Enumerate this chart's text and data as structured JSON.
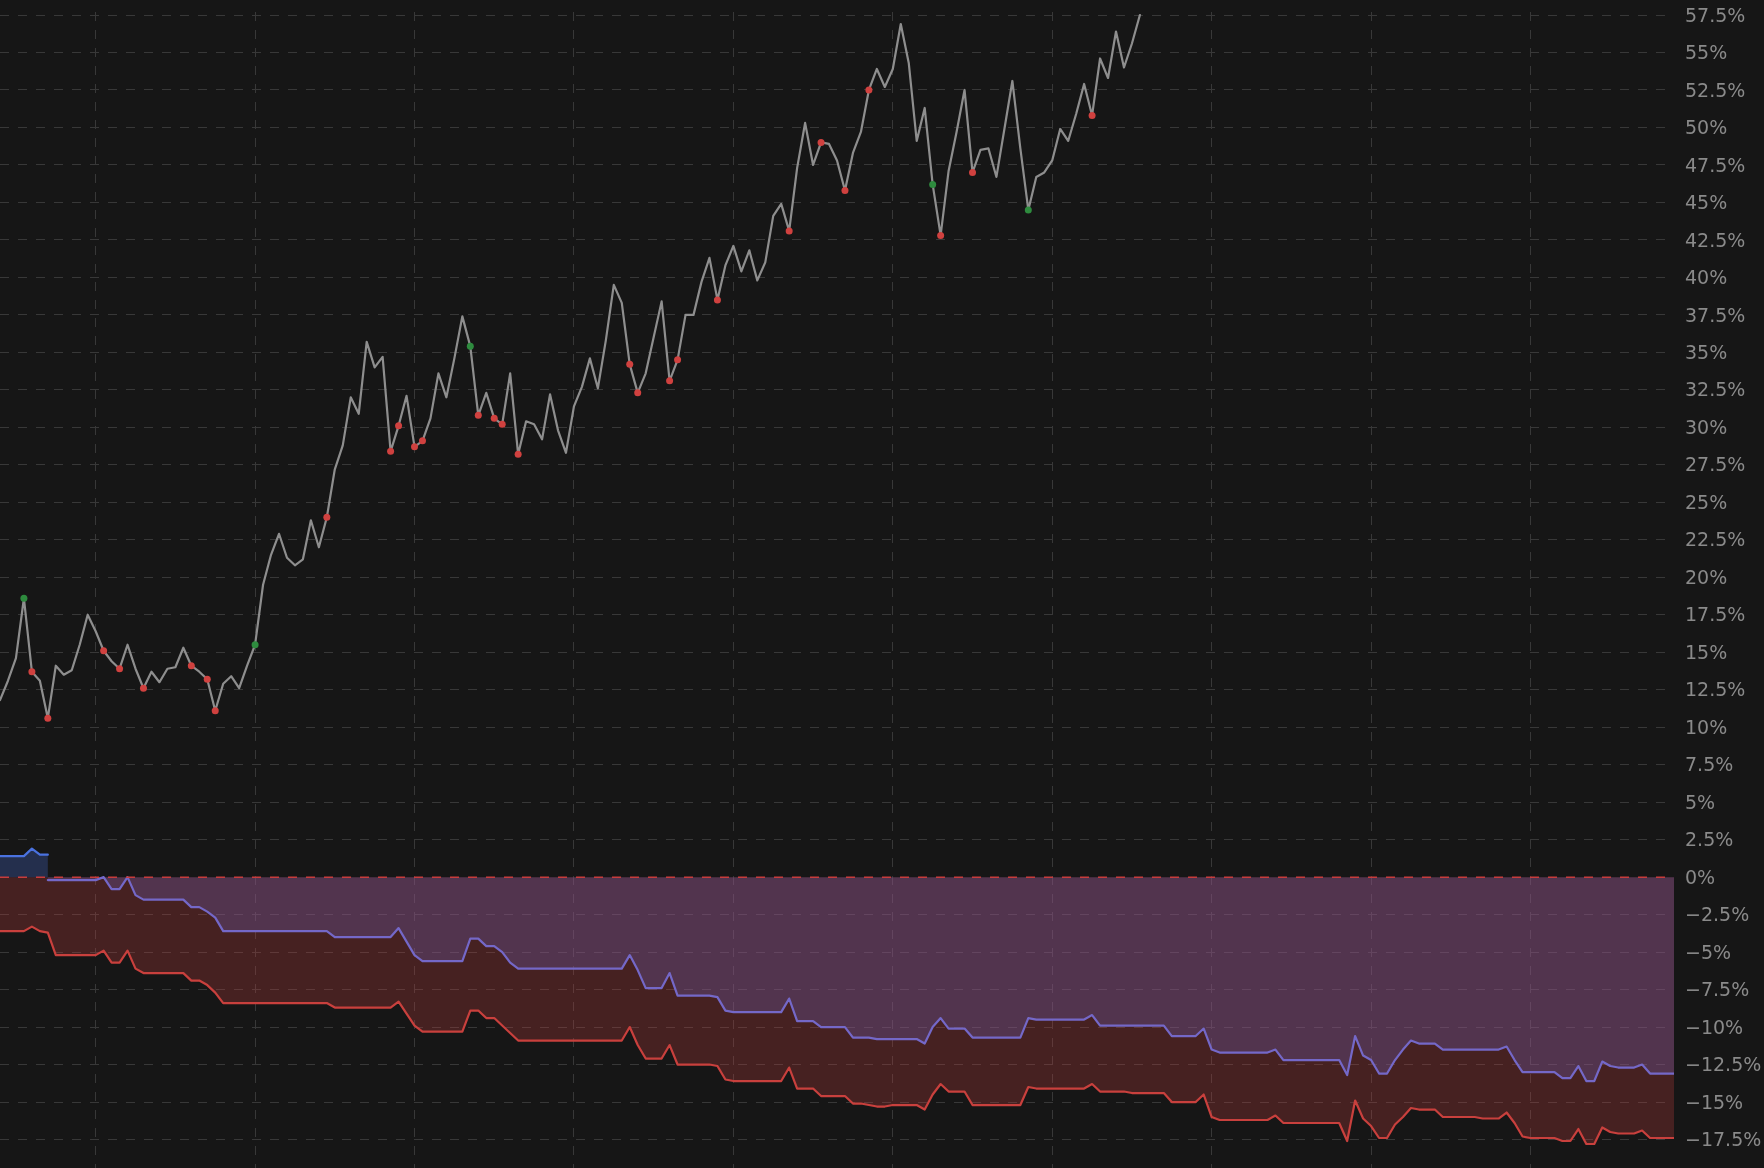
{
  "chart_data": {
    "type": "line",
    "categories": [
      null,
      null,
      null,
      null,
      null,
      null,
      null,
      null,
      null,
      null,
      null,
      null,
      null,
      null,
      null,
      null,
      null,
      null,
      null,
      null,
      null,
      null,
      null,
      null,
      null,
      null,
      null,
      null,
      null,
      null,
      null,
      null,
      null,
      null,
      null,
      null,
      null,
      null,
      null,
      null,
      null,
      null,
      null,
      null,
      null,
      null,
      null,
      null,
      null,
      null,
      null,
      null,
      null,
      null,
      null,
      null,
      null,
      null,
      null,
      null,
      null,
      null,
      null,
      null,
      null,
      null,
      null,
      null,
      null,
      null,
      null,
      null,
      null,
      null,
      null,
      null,
      null,
      null,
      null,
      null,
      null,
      null,
      null,
      null,
      null,
      null,
      null,
      null,
      null,
      null,
      null,
      null,
      null,
      null,
      null,
      null,
      null,
      null,
      null,
      null,
      null,
      null,
      null,
      null,
      null,
      null,
      null,
      null,
      null,
      null,
      null,
      null,
      null,
      null,
      null,
      null,
      null,
      null,
      null,
      null,
      null,
      null,
      null,
      null,
      null,
      null,
      null,
      null,
      null,
      null,
      null,
      null,
      null,
      null,
      null,
      null,
      null,
      null,
      null,
      null,
      null,
      null,
      null,
      null,
      null,
      null,
      null,
      null,
      null,
      null,
      null,
      null,
      null,
      null,
      null,
      null,
      null,
      null,
      null,
      null,
      null,
      null,
      null,
      null,
      null,
      null,
      null,
      null,
      null,
      null,
      null,
      null,
      null,
      null,
      null,
      null,
      null,
      null,
      null,
      null,
      null,
      null,
      null,
      null,
      null,
      null,
      null,
      null,
      null,
      null,
      null,
      null,
      null,
      null,
      null,
      null,
      null,
      null,
      null,
      null,
      null,
      null,
      null,
      null,
      null,
      null,
      null,
      null,
      null,
      null,
      null
    ],
    "ylim": [
      -19.4,
      57.7
    ],
    "yticks": [
      {
        "value": -17.5,
        "label": "−17.5%"
      },
      {
        "value": -15,
        "label": "−15%"
      },
      {
        "value": -12.5,
        "label": "−12.5%"
      },
      {
        "value": -10,
        "label": "−10%"
      },
      {
        "value": -7.5,
        "label": "−7.5%"
      },
      {
        "value": -5,
        "label": "−5%"
      },
      {
        "value": -2.5,
        "label": "−2.5%"
      },
      {
        "value": 0,
        "label": "0%"
      },
      {
        "value": 2.5,
        "label": "2.5%"
      },
      {
        "value": 5,
        "label": "5%"
      },
      {
        "value": 7.5,
        "label": "7.5%"
      },
      {
        "value": 10,
        "label": "10%"
      },
      {
        "value": 12.5,
        "label": "12.5%"
      },
      {
        "value": 15,
        "label": "15%"
      },
      {
        "value": 17.5,
        "label": "17.5%"
      },
      {
        "value": 20,
        "label": "20%"
      },
      {
        "value": 22.5,
        "label": "22.5%"
      },
      {
        "value": 25,
        "label": "25%"
      },
      {
        "value": 27.5,
        "label": "27.5%"
      },
      {
        "value": 30,
        "label": "30%"
      },
      {
        "value": 32.5,
        "label": "32.5%"
      },
      {
        "value": 35,
        "label": "35%"
      },
      {
        "value": 37.5,
        "label": "37.5%"
      },
      {
        "value": 40,
        "label": "40%"
      },
      {
        "value": 42.5,
        "label": "42.5%"
      },
      {
        "value": 45,
        "label": "45%"
      },
      {
        "value": 47.5,
        "label": "47.5%"
      },
      {
        "value": 50,
        "label": "50%"
      },
      {
        "value": 52.5,
        "label": "52.5%"
      },
      {
        "value": 55,
        "label": "55%"
      },
      {
        "value": 57.5,
        "label": "57.5%"
      }
    ],
    "grid": true,
    "tick_labels": "y",
    "ref_lines": [
      {
        "axis": "y",
        "value": 0,
        "color": "#c83c3c",
        "line_style": "dashed"
      }
    ],
    "series": [
      {
        "type": "area",
        "color": "#c9403d",
        "values": [
          -3.6,
          -3.6,
          -3.6,
          -3.6,
          -3.3,
          -3.6,
          -3.7,
          -5.2,
          -5.2,
          -5.2,
          -5.2,
          -5.2,
          -5.2,
          -4.9,
          -5.7,
          -5.7,
          -4.9,
          -6.1,
          -6.4,
          -6.4,
          -6.4,
          -6.4,
          -6.4,
          -6.4,
          -6.9,
          -6.9,
          -7.2,
          -7.7,
          -8.4,
          -8.4,
          -8.4,
          -8.4,
          -8.4,
          -8.4,
          -8.4,
          -8.4,
          -8.4,
          -8.4,
          -8.4,
          -8.4,
          -8.4,
          -8.4,
          -8.7,
          -8.7,
          -8.7,
          -8.7,
          -8.7,
          -8.7,
          -8.7,
          -8.7,
          -8.3,
          -9.1,
          -9.9,
          -10.3,
          -10.3,
          -10.3,
          -10.3,
          -10.3,
          -10.3,
          -8.9,
          -8.9,
          -9.4,
          -9.4,
          -9.9,
          -10.4,
          -10.9,
          -10.9,
          -10.9,
          -10.9,
          -10.9,
          -10.9,
          -10.9,
          -10.9,
          -10.9,
          -10.9,
          -10.9,
          -10.9,
          -10.9,
          -10.9,
          -10.0,
          -11.2,
          -12.1,
          -12.1,
          -12.1,
          -11.2,
          -12.5,
          -12.5,
          -12.5,
          -12.5,
          -12.5,
          -12.6,
          -13.5,
          -13.6,
          -13.6,
          -13.6,
          -13.6,
          -13.6,
          -13.6,
          -13.6,
          -12.7,
          -14.1,
          -14.1,
          -14.1,
          -14.6,
          -14.6,
          -14.6,
          -14.6,
          -15.1,
          -15.1,
          -15.2,
          -15.3,
          -15.3,
          -15.2,
          -15.2,
          -15.2,
          -15.2,
          -15.5,
          -14.5,
          -13.8,
          -14.3,
          -14.3,
          -14.3,
          -15.2,
          -15.2,
          -15.2,
          -15.2,
          -15.2,
          -15.2,
          -15.2,
          -14.0,
          -14.1,
          -14.1,
          -14.1,
          -14.1,
          -14.1,
          -14.1,
          -14.1,
          -13.8,
          -14.3,
          -14.3,
          -14.3,
          -14.3,
          -14.4,
          -14.4,
          -14.4,
          -14.4,
          -14.4,
          -15.0,
          -15.0,
          -15.0,
          -15.0,
          -14.5,
          -16.0,
          -16.2,
          -16.2,
          -16.2,
          -16.2,
          -16.2,
          -16.2,
          -16.2,
          -15.9,
          -16.4,
          -16.4,
          -16.4,
          -16.4,
          -16.4,
          -16.4,
          -16.4,
          -16.4,
          -17.6,
          -14.9,
          -16.1,
          -16.6,
          -17.4,
          -17.4,
          -16.5,
          -16.0,
          -15.4,
          -15.5,
          -15.5,
          -15.5,
          -16.0,
          -16.0,
          -16.0,
          -16.0,
          -16.0,
          -16.1,
          -16.1,
          -16.1,
          -15.7,
          -16.4,
          -17.3,
          -17.4,
          -17.4,
          -17.4,
          -17.4,
          -17.6,
          -17.6,
          -16.8,
          -17.8,
          -17.8,
          -16.7,
          -17.0,
          -17.1,
          -17.1,
          -17.1,
          -16.9,
          -17.4,
          -17.4,
          -17.4,
          -17.4
        ]
      },
      {
        "type": "area",
        "color": "#7468c8",
        "values": [
          null,
          null,
          null,
          null,
          null,
          null,
          -0.2,
          -0.2,
          -0.2,
          -0.2,
          -0.2,
          -0.2,
          -0.2,
          0.0,
          -0.8,
          -0.8,
          0.0,
          -1.2,
          -1.5,
          -1.5,
          -1.5,
          -1.5,
          -1.5,
          -1.5,
          -2.0,
          -2.0,
          -2.3,
          -2.7,
          -3.6,
          -3.6,
          -3.6,
          -3.6,
          -3.6,
          -3.6,
          -3.6,
          -3.6,
          -3.6,
          -3.6,
          -3.6,
          -3.6,
          -3.6,
          -3.6,
          -4.0,
          -4.0,
          -4.0,
          -4.0,
          -4.0,
          -4.0,
          -4.0,
          -4.0,
          -3.4,
          -4.3,
          -5.2,
          -5.6,
          -5.6,
          -5.6,
          -5.6,
          -5.6,
          -5.6,
          -4.1,
          -4.1,
          -4.6,
          -4.6,
          -5.0,
          -5.7,
          -6.1,
          -6.1,
          -6.1,
          -6.1,
          -6.1,
          -6.1,
          -6.1,
          -6.1,
          -6.1,
          -6.1,
          -6.1,
          -6.1,
          -6.1,
          -6.1,
          -5.2,
          -6.2,
          -7.4,
          -7.4,
          -7.4,
          -6.4,
          -7.9,
          -7.9,
          -7.9,
          -7.9,
          -7.9,
          -8.0,
          -8.9,
          -9.0,
          -9.0,
          -9.0,
          -9.0,
          -9.0,
          -9.0,
          -9.0,
          -8.1,
          -9.6,
          -9.6,
          -9.6,
          -10.0,
          -10.0,
          -10.0,
          -10.0,
          -10.7,
          -10.7,
          -10.7,
          -10.8,
          -10.8,
          -10.8,
          -10.8,
          -10.8,
          -10.8,
          -11.1,
          -10.0,
          -9.4,
          -10.1,
          -10.1,
          -10.1,
          -10.7,
          -10.7,
          -10.7,
          -10.7,
          -10.7,
          -10.7,
          -10.7,
          -9.4,
          -9.5,
          -9.5,
          -9.5,
          -9.5,
          -9.5,
          -9.5,
          -9.5,
          -9.2,
          -9.9,
          -9.9,
          -9.9,
          -9.9,
          -9.9,
          -9.9,
          -9.9,
          -9.9,
          -9.9,
          -10.6,
          -10.6,
          -10.6,
          -10.6,
          -10.1,
          -11.5,
          -11.7,
          -11.7,
          -11.7,
          -11.7,
          -11.7,
          -11.7,
          -11.7,
          -11.5,
          -12.2,
          -12.2,
          -12.2,
          -12.2,
          -12.2,
          -12.2,
          -12.2,
          -12.2,
          -13.2,
          -10.6,
          -11.9,
          -12.2,
          -13.1,
          -13.1,
          -12.2,
          -11.5,
          -10.9,
          -11.1,
          -11.1,
          -11.1,
          -11.5,
          -11.5,
          -11.5,
          -11.5,
          -11.5,
          -11.5,
          -11.5,
          -11.5,
          -11.3,
          -12.2,
          -13.0,
          -13.0,
          -13.0,
          -13.0,
          -13.0,
          -13.4,
          -13.4,
          -12.6,
          -13.6,
          -13.6,
          -12.3,
          -12.6,
          -12.7,
          -12.7,
          -12.7,
          -12.5,
          -13.1,
          -13.1,
          -13.1,
          -13.1
        ]
      },
      {
        "type": "area",
        "color": "#4a72e0",
        "values": [
          1.4,
          1.4,
          1.4,
          1.4,
          1.9,
          1.5,
          1.5,
          null,
          null,
          null,
          null,
          null,
          null,
          null,
          null,
          null,
          null,
          null,
          null,
          null,
          null,
          null,
          null,
          null,
          null,
          null,
          null,
          null,
          null,
          null,
          null,
          null,
          null,
          null,
          null,
          null,
          null,
          null,
          null,
          null,
          null,
          null,
          null,
          null,
          null,
          null,
          null,
          null,
          null,
          null,
          null,
          null,
          null,
          null,
          null,
          null,
          null,
          null,
          null,
          null,
          null,
          null,
          null,
          null,
          null,
          null,
          null,
          null,
          null,
          null,
          null,
          null,
          null,
          null,
          null,
          null,
          null,
          null,
          null,
          null,
          null,
          null,
          null,
          null,
          null,
          null,
          null,
          null,
          null,
          null,
          null,
          null,
          null,
          null,
          null,
          null,
          null,
          null,
          null,
          null,
          null,
          null,
          null,
          null,
          null,
          null,
          null,
          null,
          null,
          null,
          null,
          null,
          null,
          null,
          null,
          null,
          null,
          null,
          null,
          null,
          null,
          null,
          null,
          null,
          null,
          null,
          null,
          null,
          null,
          null,
          null,
          null,
          null,
          null,
          null,
          null,
          null,
          null,
          null,
          null,
          null,
          null,
          null,
          null,
          null,
          null,
          null,
          null,
          null,
          null,
          null,
          null,
          null,
          null,
          null,
          null,
          null,
          null,
          null,
          null,
          null,
          null,
          null,
          null,
          null,
          null,
          null,
          null,
          null,
          null,
          null,
          null,
          null,
          null,
          null,
          null,
          null,
          null,
          null,
          null,
          null,
          null,
          null,
          null,
          null,
          null,
          null,
          null,
          null,
          null,
          null,
          null,
          null,
          null,
          null,
          null,
          null,
          null,
          null,
          null,
          null,
          null,
          null,
          null,
          null,
          null,
          null,
          null,
          null,
          null,
          null
        ]
      },
      {
        "color": "#8e8e8e",
        "values": [
          11.8,
          13.1,
          14.6,
          18.6,
          13.7,
          13.1,
          10.6,
          14.1,
          13.5,
          13.8,
          15.5,
          17.5,
          16.4,
          15.1,
          14.4,
          13.9,
          15.5,
          13.9,
          12.6,
          13.7,
          13.0,
          13.9,
          14.0,
          15.3,
          14.1,
          13.7,
          13.2,
          11.1,
          12.9,
          13.4,
          12.6,
          14.1,
          15.5,
          19.5,
          21.5,
          22.9,
          21.3,
          20.8,
          21.2,
          23.8,
          22.0,
          24.0,
          27.2,
          28.8,
          32.0,
          30.9,
          35.7,
          34.0,
          34.7,
          28.4,
          30.1,
          32.1,
          28.7,
          29.1,
          30.6,
          33.6,
          32.0,
          34.6,
          37.4,
          35.4,
          30.8,
          32.3,
          30.6,
          30.2,
          33.6,
          28.2,
          30.4,
          30.2,
          29.2,
          32.2,
          29.8,
          28.3,
          31.4,
          32.7,
          34.6,
          32.6,
          35.8,
          39.5,
          38.3,
          34.2,
          32.3,
          33.6,
          36.0,
          38.4,
          33.1,
          34.5,
          37.5,
          37.5,
          39.7,
          41.3,
          38.5,
          40.8,
          42.1,
          40.4,
          41.8,
          39.8,
          41.0,
          44.1,
          44.9,
          43.1,
          47.3,
          50.3,
          47.5,
          49.0,
          48.9,
          47.8,
          45.8,
          48.3,
          49.7,
          52.5,
          53.9,
          52.7,
          53.9,
          56.9,
          54.3,
          49.1,
          51.3,
          46.2,
          42.8,
          47.1,
          49.7,
          52.5,
          47.0,
          48.5,
          48.6,
          46.7,
          49.9,
          53.1,
          48.6,
          44.5,
          46.7,
          47.0,
          47.8,
          49.9,
          49.1,
          50.9,
          52.9,
          50.8,
          54.6,
          53.3,
          56.4,
          54.0,
          55.6,
          57.5,
          null,
          null,
          null,
          null,
          null,
          null,
          null,
          null,
          null,
          null,
          null,
          null,
          null,
          null,
          null,
          null,
          null,
          null,
          null,
          null,
          null,
          null,
          null,
          null,
          null,
          null,
          null,
          null,
          null,
          null,
          null,
          null,
          null,
          null,
          null,
          null,
          null,
          null,
          null,
          null,
          null,
          null,
          null,
          null,
          null,
          null,
          null,
          null,
          null,
          null,
          null,
          null,
          null,
          null,
          null,
          null,
          null,
          null,
          null,
          null,
          null,
          null,
          null,
          null,
          null,
          null,
          null
        ]
      },
      {
        "type": "scatter",
        "color": "#d0413f",
        "values": [
          null,
          null,
          null,
          null,
          13.7,
          null,
          10.6,
          null,
          null,
          null,
          null,
          null,
          null,
          15.1,
          null,
          13.9,
          null,
          null,
          12.6,
          null,
          null,
          null,
          null,
          null,
          14.1,
          null,
          13.2,
          11.1,
          null,
          null,
          null,
          null,
          null,
          null,
          null,
          null,
          null,
          null,
          null,
          null,
          null,
          24.0,
          null,
          null,
          null,
          null,
          null,
          null,
          null,
          28.4,
          30.1,
          null,
          28.7,
          29.1,
          null,
          null,
          null,
          null,
          null,
          null,
          30.8,
          null,
          30.6,
          30.2,
          null,
          28.2,
          null,
          null,
          null,
          null,
          null,
          null,
          null,
          null,
          null,
          null,
          null,
          null,
          null,
          34.2,
          32.3,
          null,
          null,
          null,
          33.1,
          34.5,
          null,
          null,
          null,
          null,
          38.5,
          null,
          null,
          null,
          null,
          null,
          null,
          null,
          null,
          43.1,
          null,
          null,
          null,
          49.0,
          null,
          null,
          45.8,
          null,
          null,
          52.5,
          null,
          null,
          null,
          null,
          null,
          null,
          null,
          null,
          42.8,
          null,
          null,
          null,
          47.0,
          null,
          null,
          null,
          null,
          null,
          null,
          null,
          null,
          null,
          null,
          null,
          null,
          null,
          null,
          50.8,
          null,
          null,
          null,
          null,
          null,
          null,
          null,
          null,
          null,
          null,
          null,
          null,
          null,
          null,
          null,
          null,
          null,
          null,
          null,
          null,
          null,
          null,
          null,
          null,
          null,
          null,
          null,
          null,
          null,
          null,
          null,
          null,
          null,
          null,
          null,
          null,
          null,
          null,
          null,
          null,
          null,
          null,
          null,
          null,
          null,
          null,
          null,
          null,
          null,
          null,
          null,
          null,
          null,
          null,
          null,
          null,
          null,
          null,
          null,
          null,
          null,
          null,
          null,
          null,
          null,
          null,
          null,
          null,
          null,
          null,
          null,
          null,
          null
        ]
      },
      {
        "type": "scatter",
        "color": "#2e8b3e",
        "values": [
          null,
          null,
          null,
          18.6,
          null,
          null,
          null,
          null,
          null,
          null,
          null,
          null,
          null,
          null,
          null,
          null,
          null,
          null,
          null,
          null,
          null,
          null,
          null,
          null,
          null,
          null,
          null,
          null,
          null,
          null,
          null,
          null,
          15.5,
          null,
          null,
          null,
          null,
          null,
          null,
          null,
          null,
          null,
          null,
          null,
          null,
          null,
          null,
          null,
          null,
          null,
          null,
          null,
          null,
          null,
          null,
          null,
          null,
          null,
          null,
          35.4,
          null,
          null,
          null,
          null,
          null,
          null,
          null,
          null,
          null,
          null,
          null,
          null,
          null,
          null,
          null,
          null,
          null,
          null,
          null,
          null,
          null,
          null,
          null,
          null,
          null,
          null,
          null,
          null,
          null,
          null,
          null,
          null,
          null,
          null,
          null,
          null,
          null,
          null,
          null,
          null,
          null,
          null,
          null,
          null,
          null,
          null,
          null,
          null,
          null,
          null,
          null,
          null,
          null,
          null,
          null,
          null,
          null,
          46.2,
          null,
          null,
          null,
          null,
          null,
          null,
          null,
          null,
          null,
          null,
          null,
          44.5,
          null,
          null,
          null,
          null,
          null,
          null,
          null,
          null,
          null,
          null,
          null,
          null,
          null,
          null,
          null,
          null,
          null,
          null,
          null,
          null,
          null,
          null,
          null,
          null,
          null,
          null,
          null,
          null,
          null,
          null,
          null,
          null,
          null,
          null,
          null,
          null,
          null,
          null,
          null,
          null,
          null,
          null,
          null,
          null,
          null,
          null,
          null,
          null,
          null,
          null,
          null,
          null,
          null,
          null,
          null,
          null,
          null,
          null,
          null,
          null,
          null,
          null,
          null,
          null,
          null,
          null,
          null,
          null,
          null,
          null,
          null,
          null,
          null,
          null,
          null,
          null,
          null,
          null,
          null,
          null,
          null
        ]
      }
    ]
  }
}
